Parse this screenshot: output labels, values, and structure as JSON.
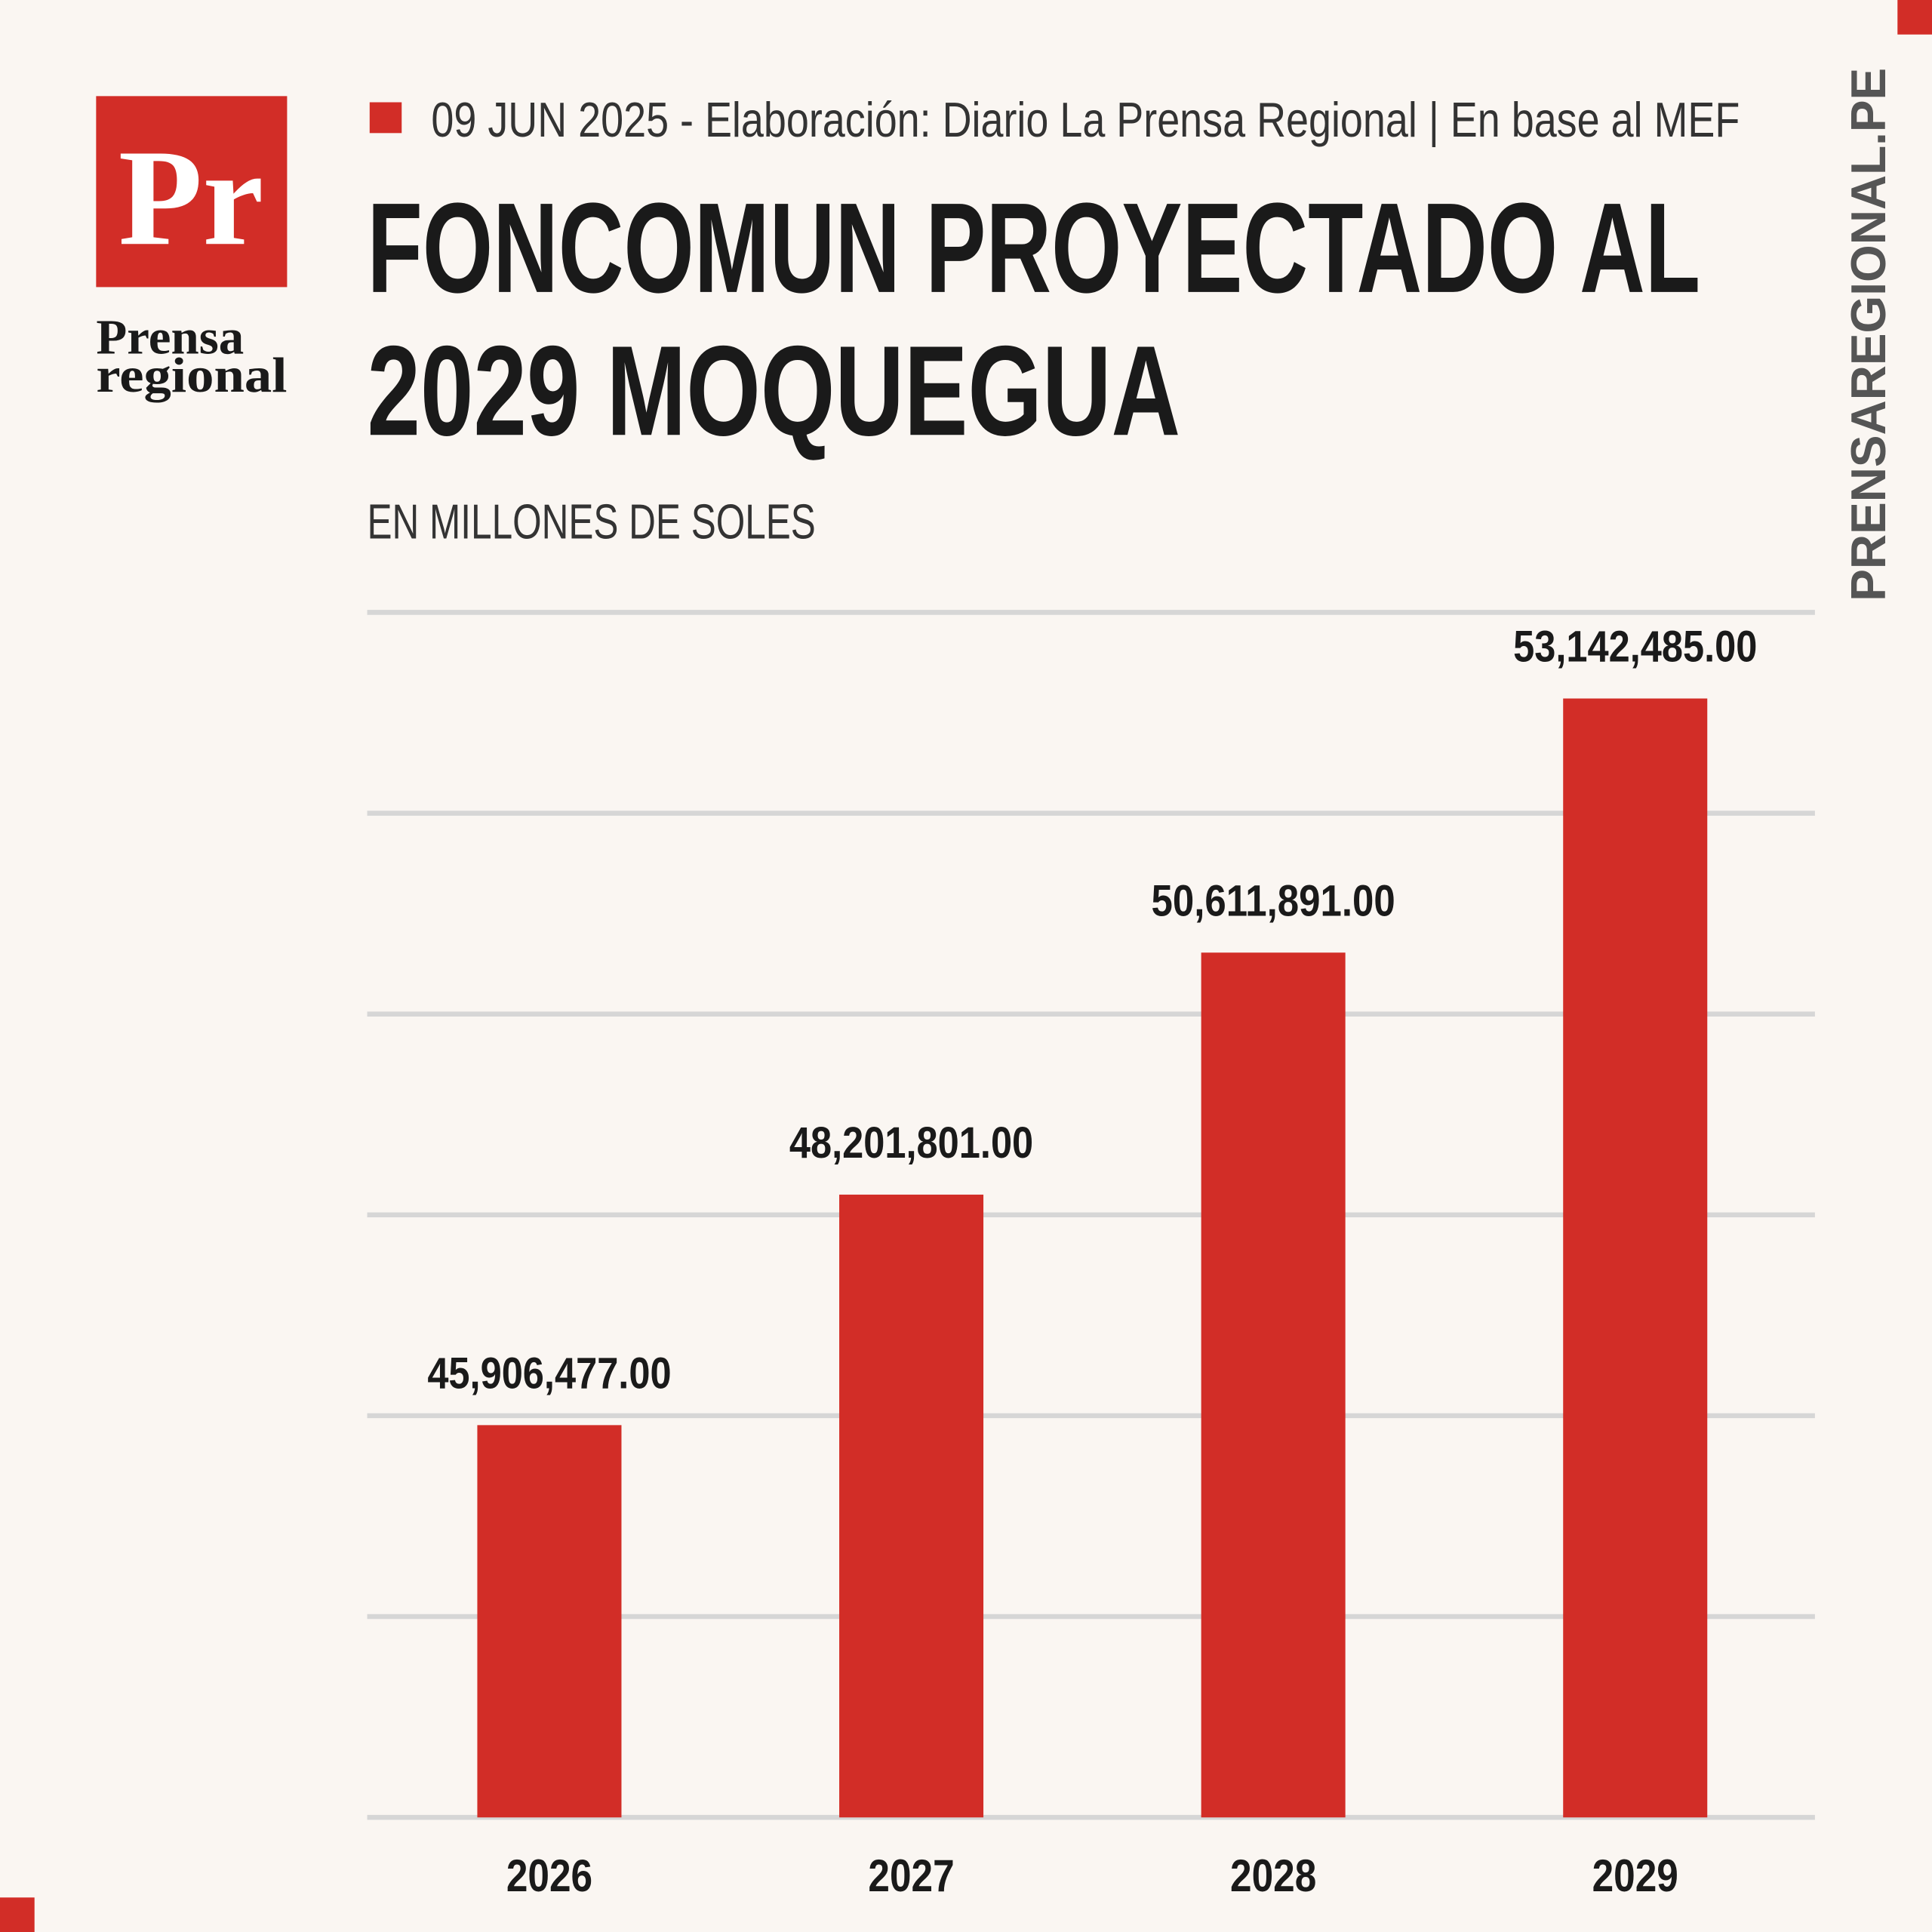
{
  "header": {
    "logo_mark": "Pr",
    "logo_word_1": "Prensa",
    "logo_word_2": "regional",
    "byline": "09 JUN 2025 -  Elaboración: Diario La Prensa Regional | En base al MEF",
    "side_text": "PRENSAREGIONAL.PE"
  },
  "chart_data": {
    "type": "bar",
    "title": [
      "FONCOMUN PROYECTADO AL",
      "2029 MOQUEGUA"
    ],
    "subtitle": "EN MILLONES DE SOLES",
    "categories": [
      "2026",
      "2027",
      "2028",
      "2029"
    ],
    "values": [
      45906477,
      48201801,
      50611891,
      53142485
    ],
    "value_labels": [
      "45,906,477.00",
      "48,201,801.00",
      "50,611,891.00",
      "53,142,485.00"
    ],
    "color": "#d22d27",
    "ylim": [
      42000000,
      54000000
    ],
    "yticks": [
      42000000,
      44000000,
      46000000,
      48000000,
      50000000,
      52000000,
      54000000
    ],
    "grid": true
  }
}
